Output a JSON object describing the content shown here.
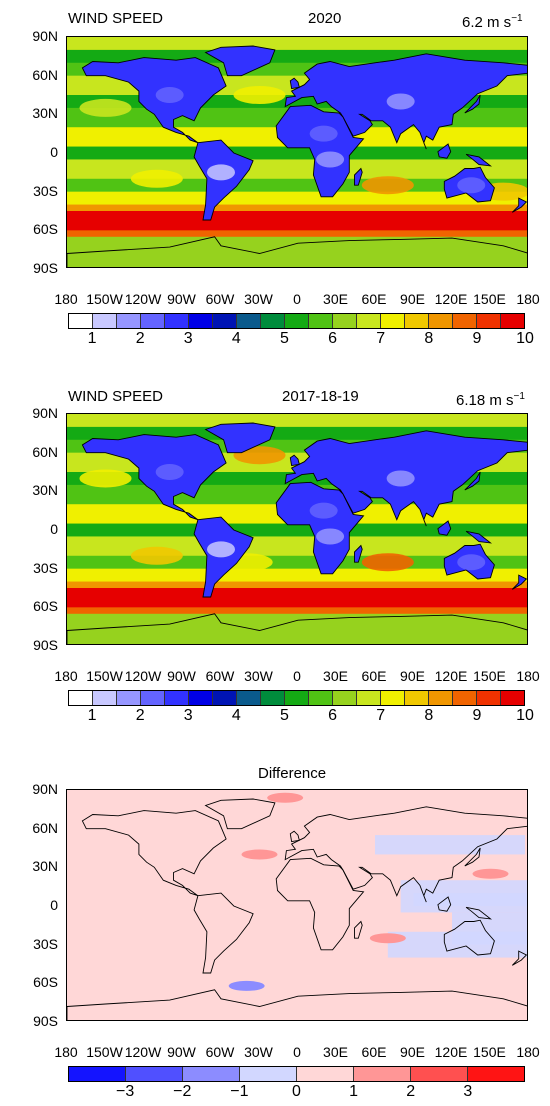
{
  "panels": [
    {
      "title_left": "WIND SPEED",
      "title_center": "2020",
      "title_right_value": "6.2 m s",
      "title_right_exp": "−1",
      "kind": "speed"
    },
    {
      "title_left": "WIND SPEED",
      "title_center": "2017-18-19",
      "title_right_value": "6.18 m s",
      "title_right_exp": "−1",
      "kind": "speed"
    },
    {
      "title_left": "",
      "title_center": "Difference",
      "title_right_value": "",
      "title_right_exp": "",
      "kind": "diff"
    }
  ],
  "lat_labels": [
    "90N",
    "60N",
    "30N",
    "0",
    "30S",
    "60S",
    "90S"
  ],
  "lon_labels": [
    "180",
    "150W",
    "120W",
    "90W",
    "60W",
    "30W",
    "0",
    "30E",
    "60E",
    "90E",
    "120E",
    "150E",
    "180"
  ],
  "speed_colorbar": {
    "colors": [
      "#ffffff",
      "#c8c8ff",
      "#9696ff",
      "#6464ff",
      "#3232ff",
      "#0000e6",
      "#0014b4",
      "#0a5a8c",
      "#008c3c",
      "#14aa14",
      "#50c314",
      "#96d21e",
      "#c8e61e",
      "#f0f000",
      "#f0c800",
      "#f09600",
      "#f06400",
      "#f03200",
      "#e60000"
    ],
    "labels": [
      "1",
      "2",
      "3",
      "4",
      "5",
      "6",
      "7",
      "8",
      "9",
      "10"
    ]
  },
  "diff_colorbar": {
    "colors": [
      "#1414ff",
      "#5050ff",
      "#8c8cff",
      "#d2d7ff",
      "#ffd7d7",
      "#ff9696",
      "#ff5050",
      "#ff1414"
    ],
    "labels": [
      "−3",
      "−2",
      "−1",
      "0",
      "1",
      "2",
      "3"
    ]
  }
}
